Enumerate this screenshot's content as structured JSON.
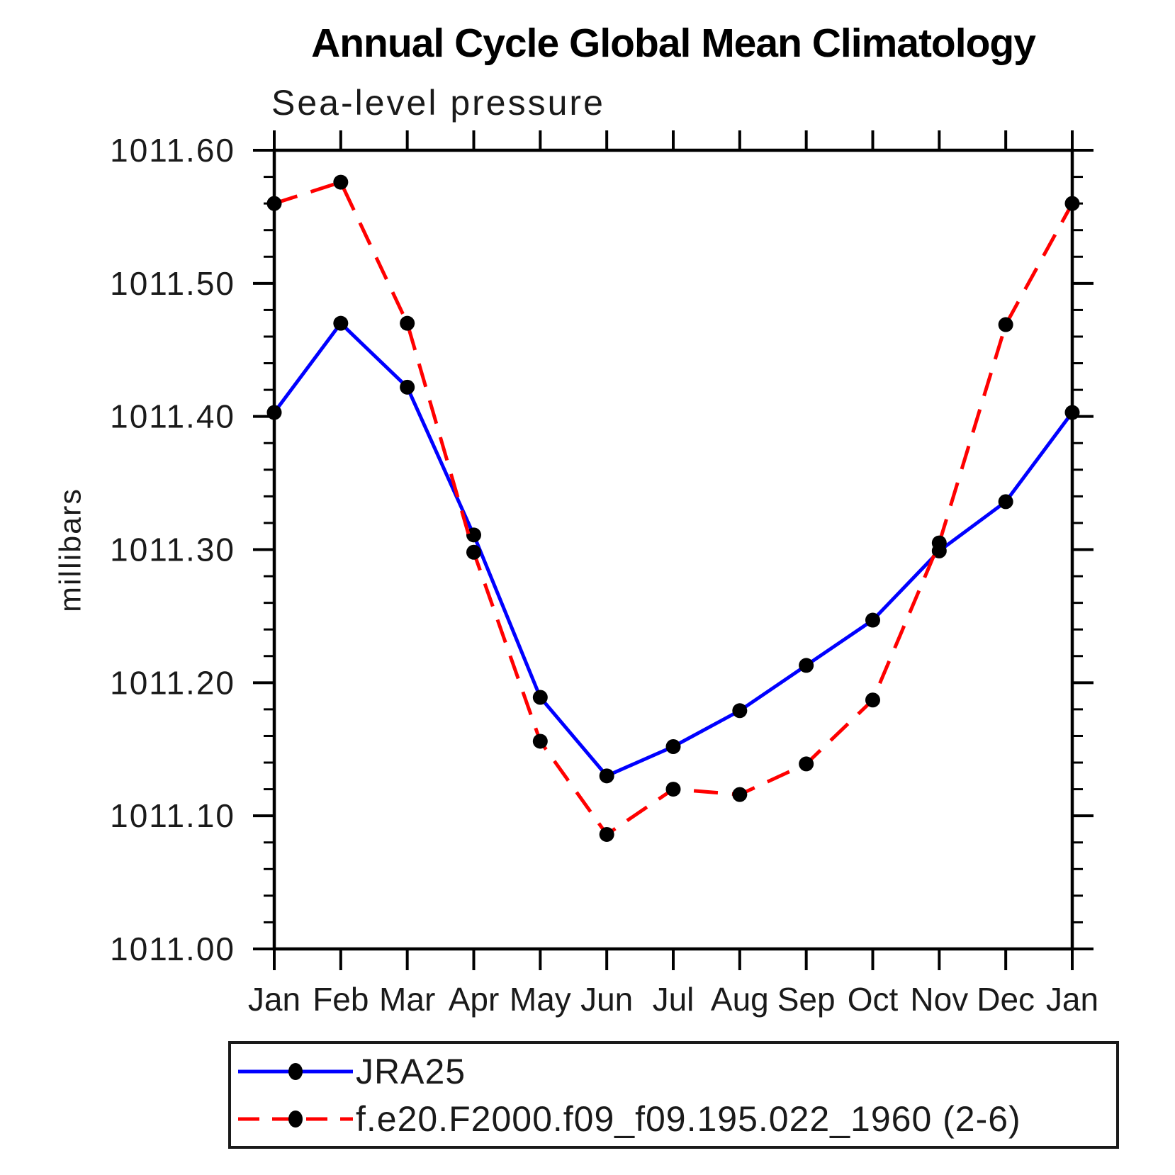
{
  "chart_data": {
    "type": "line",
    "title": "Annual Cycle Global Mean Climatology",
    "subtitle": "Sea-level pressure",
    "ylabel": "millibars",
    "x": [
      "Jan",
      "Feb",
      "Mar",
      "Apr",
      "May",
      "Jun",
      "Jul",
      "Aug",
      "Sep",
      "Oct",
      "Nov",
      "Dec",
      "Jan"
    ],
    "series": [
      {
        "name": "JRA25",
        "color": "#0000ff",
        "style": "solid",
        "marker": "circle",
        "marker_color": "#000000",
        "values": [
          1011.403,
          1011.47,
          1011.422,
          1011.311,
          1011.189,
          1011.13,
          1011.152,
          1011.179,
          1011.213,
          1011.247,
          1011.299,
          1011.336,
          1011.403
        ]
      },
      {
        "name": "f.e20.F2000.f09_f09.195.022_1960 (2-6)",
        "color": "#ff0000",
        "style": "dashed",
        "marker": "circle",
        "marker_color": "#000000",
        "values": [
          1011.56,
          1011.576,
          1011.47,
          1011.298,
          1011.156,
          1011.086,
          1011.12,
          1011.116,
          1011.139,
          1011.187,
          1011.305,
          1011.469,
          1011.56
        ]
      }
    ],
    "ylim": [
      1011.0,
      1011.6
    ],
    "ytick_major": 0.1,
    "ytick_minor": 0.02,
    "ytick_labels": [
      "1011.00",
      "1011.10",
      "1011.20",
      "1011.30",
      "1011.40",
      "1011.50",
      "1011.60"
    ],
    "grid": false,
    "legend_position": "bottom",
    "axis_color": "#000000"
  }
}
